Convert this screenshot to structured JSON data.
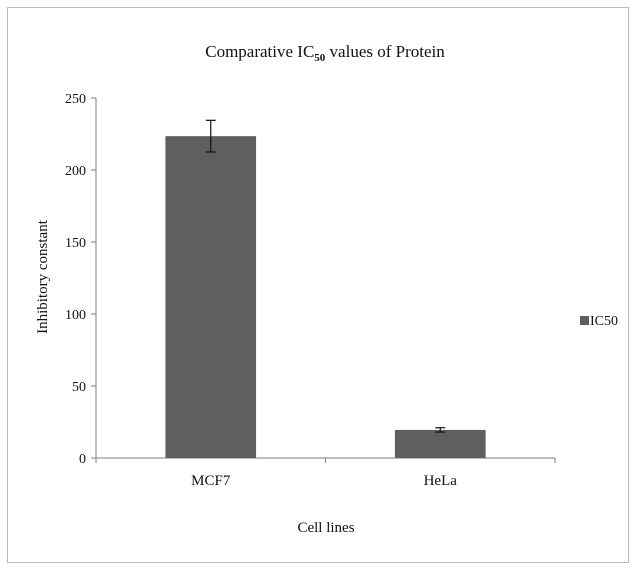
{
  "chart_data": {
    "type": "bar",
    "title_main": "Comparative IC",
    "title_sub": "50",
    "title_rest": " values of Protein",
    "xlabel": "Cell lines",
    "ylabel": "Inhibitory constant",
    "categories": [
      "MCF7",
      "HeLa"
    ],
    "series": [
      {
        "name": "IC50",
        "values": [
          223.5,
          19.5
        ],
        "errors": [
          11,
          1.5
        ],
        "color": "#5f5f5f"
      }
    ],
    "ylim": [
      0,
      250
    ],
    "yticks": [
      0,
      50,
      100,
      150,
      200,
      250
    ],
    "grid": false,
    "legend_position": "right"
  }
}
